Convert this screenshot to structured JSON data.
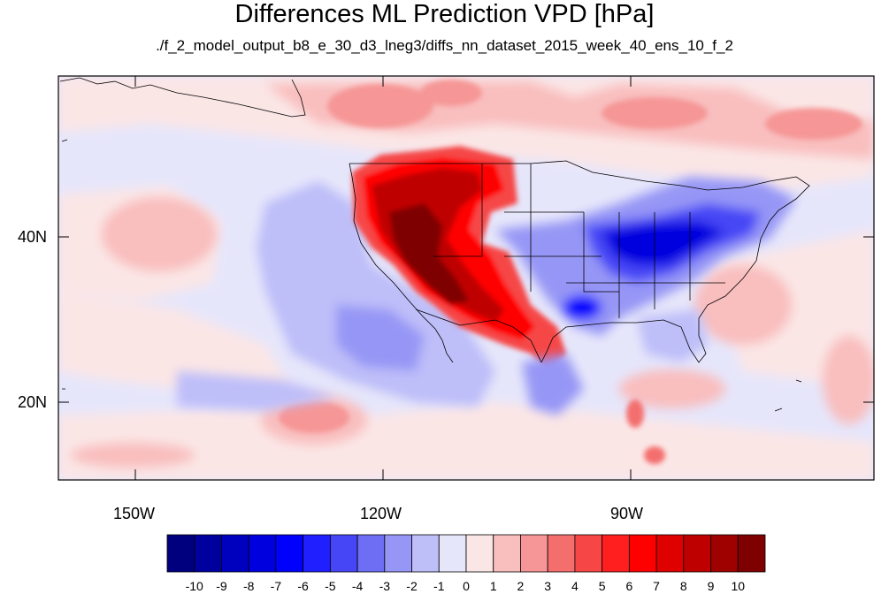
{
  "title": "Differences ML Prediction VPD [hPa]",
  "subtitle": "./f_2_model_output_b8_e_30_d3_lneg3/diffs_nn_dataset_2015_week_40_ens_10_f_2",
  "axes": {
    "lat_labels": [
      "40N",
      "20N"
    ],
    "lon_labels": [
      "150W",
      "120W",
      "90W"
    ]
  },
  "colorbar": {
    "labels": [
      "-10",
      "-9",
      "-8",
      "-7",
      "-6",
      "-5",
      "-4",
      "-3",
      "-2",
      "-1",
      "0",
      "1",
      "2",
      "3",
      "4",
      "5",
      "6",
      "7",
      "8",
      "9",
      "10"
    ],
    "colors": [
      "#00007f",
      "#00009f",
      "#0000bf",
      "#0000df",
      "#0000ff",
      "#1f1fff",
      "#4646f6",
      "#6e6ef4",
      "#9696f6",
      "#bebef9",
      "#e6e6fb",
      "#fbe6e6",
      "#f9bebe",
      "#f69696",
      "#f46e6e",
      "#f64646",
      "#ff1f1f",
      "#ff0000",
      "#df0000",
      "#bf0000",
      "#9f0000",
      "#7f0000"
    ]
  },
  "map": {
    "background_color": "#e6e6fb",
    "land_outline_color": "#000000"
  }
}
